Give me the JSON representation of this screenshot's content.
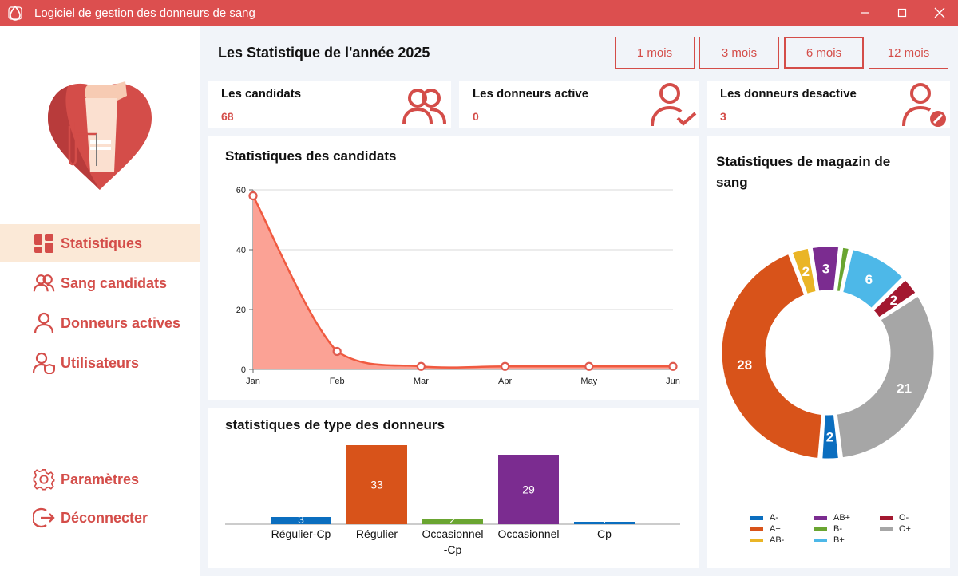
{
  "window": {
    "title": "Logiciel de gestion des donneurs de sang",
    "minimize": "—",
    "maximize": "☐",
    "close": "✕"
  },
  "sidebar": {
    "items": [
      {
        "label": "Statistiques",
        "icon": "dashboard-icon",
        "active": true
      },
      {
        "label": "Sang candidats",
        "icon": "users-icon",
        "active": false
      },
      {
        "label": "Donneurs actives",
        "icon": "user-icon",
        "active": false
      },
      {
        "label": "Utilisateurs",
        "icon": "user-shield-icon",
        "active": false
      }
    ],
    "bottom": [
      {
        "label": "Paramètres",
        "icon": "gear-icon"
      },
      {
        "label": "Déconnecter",
        "icon": "logout-icon"
      }
    ]
  },
  "header": {
    "title": "Les Statistique de l'année 2025",
    "periods": [
      "1 mois",
      "3 mois",
      "6 mois",
      "12 mois"
    ],
    "active_period": "6 mois"
  },
  "stats": [
    {
      "label": "Les candidats",
      "value": "68",
      "icon": "users-icon"
    },
    {
      "label": "Les donneurs active",
      "value": "0",
      "icon": "user-check-icon"
    },
    {
      "label": "Les donneurs desactive",
      "value": "3",
      "icon": "user-block-icon"
    }
  ],
  "colors": {
    "accent": "#d44d49",
    "titlebar": "#dc4f4f",
    "area_fill": "#fba295",
    "area_line": "#f05a40"
  },
  "chart_data": [
    {
      "type": "area",
      "title": "Statistiques des candidats",
      "categories": [
        "Jan",
        "Feb",
        "Mar",
        "Apr",
        "May",
        "Jun"
      ],
      "values": [
        58,
        6,
        1,
        1,
        1,
        1
      ],
      "yticks": [
        0,
        20,
        40,
        60
      ],
      "ylim": [
        0,
        60
      ]
    },
    {
      "type": "bar",
      "title": "statistiques de type des donneurs",
      "categories": [
        "Régulier-Cp",
        "Régulier",
        "Occasionnel-Cp",
        "Occasionnel",
        "Cp"
      ],
      "category_lines": [
        [
          "Régulier-Cp"
        ],
        [
          "Régulier"
        ],
        [
          "Occasionnel",
          "-Cp"
        ],
        [
          "Occasionnel"
        ],
        [
          "Cp"
        ]
      ],
      "values": [
        3,
        33,
        2,
        29,
        1
      ],
      "colors": [
        "#0b6ebf",
        "#d8531a",
        "#6aa531",
        "#7b2c90",
        "#0b6ebf"
      ]
    },
    {
      "type": "pie",
      "title": "Statistiques de magazin de sang",
      "donut": true,
      "slices": [
        {
          "label": "A-",
          "value": 2,
          "color": "#0b6ebf"
        },
        {
          "label": "A+",
          "value": 28,
          "color": "#d8531a"
        },
        {
          "label": "AB-",
          "value": 2,
          "color": "#eab526"
        },
        {
          "label": "AB+",
          "value": 3,
          "color": "#7b2c90"
        },
        {
          "label": "B-",
          "value": 1,
          "color": "#6aa531"
        },
        {
          "label": "B+",
          "value": 6,
          "color": "#4db8e8"
        },
        {
          "label": "O-",
          "value": 2,
          "color": "#a3182f"
        },
        {
          "label": "O+",
          "value": 21,
          "color": "#a6a6a6"
        }
      ]
    }
  ]
}
